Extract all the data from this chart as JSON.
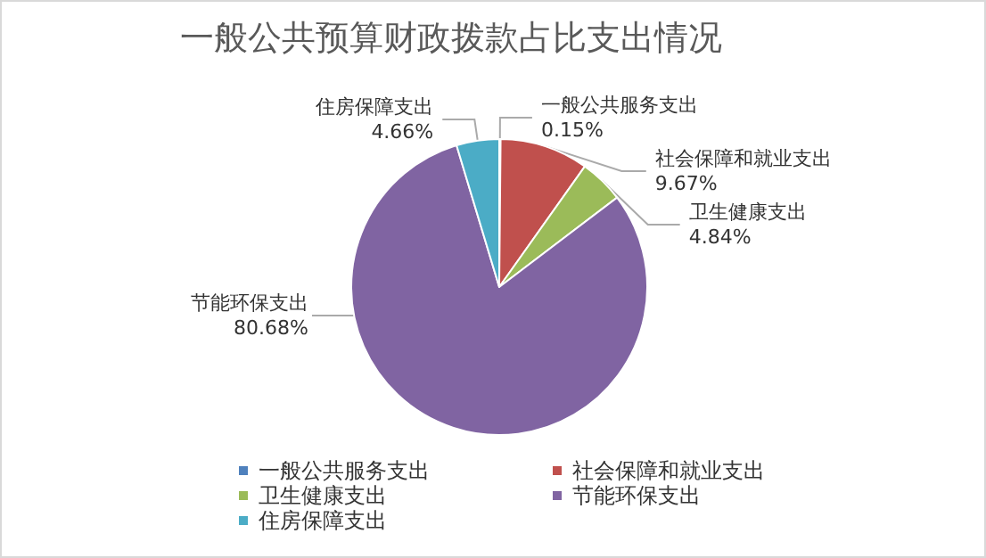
{
  "chart_data": {
    "type": "pie",
    "title": "一般公共预算财政拨款占比支出情况",
    "categories": [
      "一般公共服务支出",
      "社会保障和就业支出",
      "卫生健康支出",
      "节能环保支出",
      "住房保障支出"
    ],
    "values": [
      0.15,
      9.67,
      4.84,
      80.68,
      4.66
    ],
    "colors": [
      "#4f81bd",
      "#c0504d",
      "#9bbb59",
      "#8064a2",
      "#4bacc6"
    ],
    "value_labels": [
      "0.15%",
      "9.67%",
      "4.84%",
      "80.68%",
      "4.66%"
    ],
    "legend": "bottom"
  }
}
